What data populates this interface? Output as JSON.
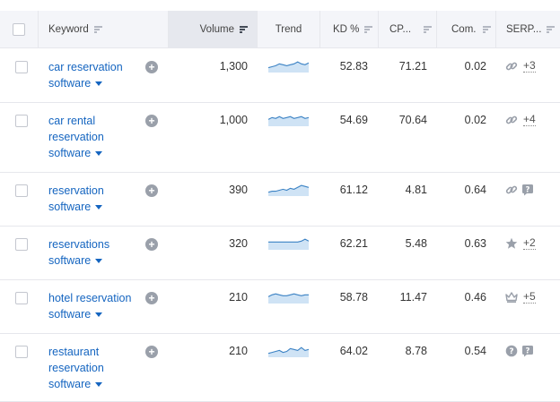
{
  "columns": {
    "keyword": "Keyword",
    "volume": "Volume",
    "trend": "Trend",
    "kd": "KD %",
    "cpc": "CP...",
    "com": "Com.",
    "serp": "SERP..."
  },
  "rows": [
    {
      "keyword_lines": [
        "car reservation",
        "software"
      ],
      "volume": "1,300",
      "trend": [
        5,
        6,
        7,
        9,
        8,
        7,
        8,
        9,
        11,
        9,
        8,
        10
      ],
      "kd": "52.83",
      "cpc": "71.21",
      "com": "0.02",
      "serp_icons": [
        "link-icon"
      ],
      "serp_count": "+3"
    },
    {
      "keyword_lines": [
        "car rental",
        "reservation",
        "software"
      ],
      "volume": "1,000",
      "trend": [
        7,
        9,
        8,
        10,
        8,
        9,
        10,
        8,
        9,
        10,
        8,
        9
      ],
      "kd": "54.69",
      "cpc": "70.64",
      "com": "0.02",
      "serp_icons": [
        "link-icon"
      ],
      "serp_count": "+4"
    },
    {
      "keyword_lines": [
        "reservation",
        "software"
      ],
      "volume": "390",
      "trend": [
        4,
        5,
        5,
        6,
        7,
        6,
        8,
        7,
        9,
        11,
        10,
        9
      ],
      "kd": "61.12",
      "cpc": "4.81",
      "com": "0.64",
      "serp_icons": [
        "link-icon",
        "question-square-icon"
      ],
      "serp_count": ""
    },
    {
      "keyword_lines": [
        "reservations",
        "software"
      ],
      "volume": "320",
      "trend": [
        8,
        8,
        8,
        8,
        8,
        8,
        8,
        8,
        8,
        9,
        11,
        9
      ],
      "kd": "62.21",
      "cpc": "5.48",
      "com": "0.63",
      "serp_icons": [
        "star-icon"
      ],
      "serp_count": "+2"
    },
    {
      "keyword_lines": [
        "hotel reservation",
        "software"
      ],
      "volume": "210",
      "trend": [
        7,
        9,
        10,
        9,
        8,
        8,
        9,
        10,
        9,
        8,
        9,
        9
      ],
      "kd": "58.78",
      "cpc": "11.47",
      "com": "0.46",
      "serp_icons": [
        "crown-icon"
      ],
      "serp_count": "+5"
    },
    {
      "keyword_lines": [
        "restaurant",
        "reservation",
        "software"
      ],
      "volume": "210",
      "trend": [
        4,
        5,
        6,
        7,
        5,
        6,
        9,
        8,
        7,
        10,
        7,
        8
      ],
      "kd": "64.02",
      "cpc": "8.78",
      "com": "0.54",
      "serp_icons": [
        "question-circle-icon",
        "question-square-icon"
      ],
      "serp_count": ""
    }
  ],
  "colors": {
    "link": "#1565c0",
    "trend_line": "#3b82c4",
    "trend_fill": "#cfe3f5",
    "icon_gray": "#9aa0aa"
  }
}
